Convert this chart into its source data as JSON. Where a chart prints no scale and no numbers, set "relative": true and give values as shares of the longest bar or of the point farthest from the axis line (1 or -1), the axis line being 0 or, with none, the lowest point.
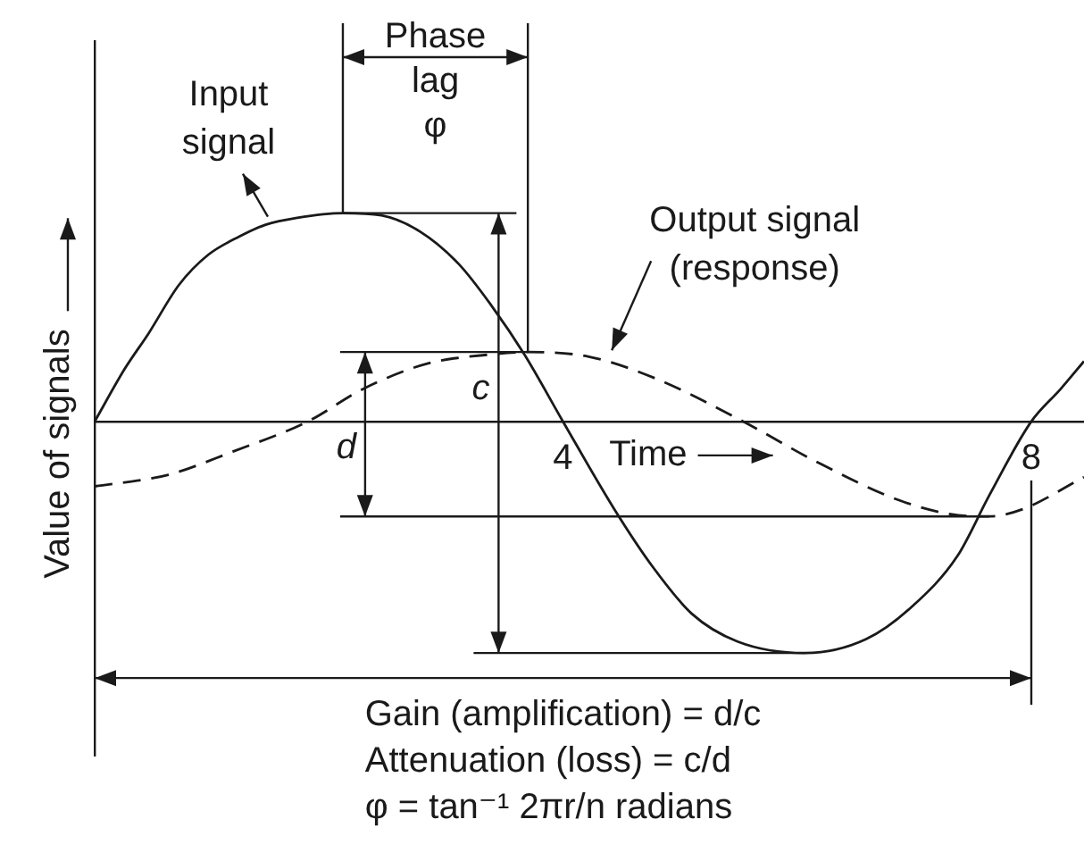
{
  "chart_data": {
    "type": "line",
    "xlabel": "Time",
    "ylabel": "Value of signals",
    "relative": true,
    "xlim": [
      0,
      8.45
    ],
    "xticks": [
      4,
      8
    ],
    "series": [
      {
        "name": "Input signal",
        "color": "#1a1a1a",
        "x": [
          0,
          0.26,
          0.46,
          0.72,
          0.97,
          1.24,
          1.46,
          1.73,
          2.12,
          2.45,
          2.78,
          3.11,
          3.39,
          3.67,
          4,
          4.44,
          4.77,
          5.1,
          5.49,
          6.07,
          6.59,
          6.98,
          7.37,
          7.64,
          8,
          8.25,
          8.45
        ],
        "values": [
          0,
          0.23,
          0.38,
          0.59,
          0.72,
          0.8,
          0.85,
          0.88,
          0.9,
          0.89,
          0.82,
          0.68,
          0.5,
          0.29,
          0,
          -0.38,
          -0.63,
          -0.83,
          -0.95,
          -1,
          -0.94,
          -0.8,
          -0.58,
          -0.32,
          0,
          0.14,
          0.26
        ]
      },
      {
        "name": "Output signal (response)",
        "color": "#1a1a1a",
        "line_style": "dashed",
        "x": [
          0,
          0.63,
          1.18,
          1.82,
          2.29,
          2.84,
          3.39,
          3.7,
          4.22,
          4.77,
          5.54,
          6.15,
          6.87,
          7.31,
          7.64,
          7.92,
          8.45
        ],
        "values": [
          -0.28,
          -0.23,
          -0.13,
          0,
          0.14,
          0.25,
          0.29,
          0.3,
          0.28,
          0.19,
          0,
          -0.17,
          -0.34,
          -0.4,
          -0.41,
          -0.38,
          -0.24
        ]
      }
    ],
    "ref_lines": [
      {
        "axis": "x",
        "value": 3.7
      },
      {
        "axis": "x",
        "value": 3.45,
        "label": "c"
      },
      {
        "axis": "x",
        "value": 2.31,
        "label": "d"
      },
      {
        "axis": "y",
        "value": 0.9
      },
      {
        "axis": "y",
        "value": -1
      },
      {
        "axis": "y",
        "value": 0.3
      },
      {
        "axis": "y",
        "value": -0.41
      },
      {
        "axis": "x",
        "value": 8
      }
    ],
    "annotations": [
      "Phase lag φ",
      "Gain (amplification) = d/c",
      "Attenuation (loss) = c/d",
      "φ = tan⁻¹ 2πr/n radians"
    ]
  }
}
